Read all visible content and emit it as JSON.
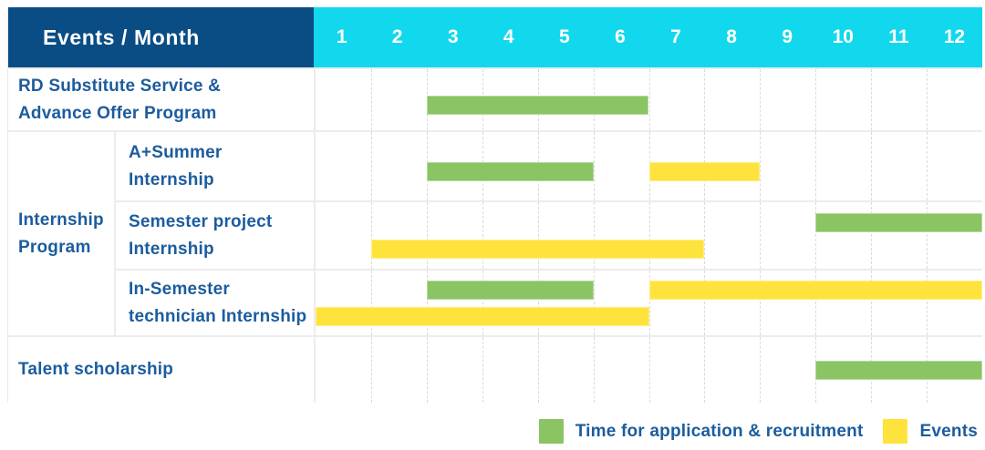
{
  "colors": {
    "navy": "#0a4d84",
    "cyan": "#12d8ee",
    "application_green": "#8bc463",
    "event_yellow": "#ffe33d",
    "label_blue": "#1c5c9e"
  },
  "chart_data": {
    "type": "bar",
    "variant": "gantt",
    "corner_title": "Events / Month",
    "xlabel": "Month",
    "x_range": [
      1,
      12
    ],
    "months": [
      "1",
      "2",
      "3",
      "4",
      "5",
      "6",
      "7",
      "8",
      "9",
      "10",
      "11",
      "12"
    ],
    "grid": "vertical-dashed",
    "legend_position": "bottom-right",
    "group_label": "Internship Program",
    "group_label_lines": [
      "Internship",
      "Program"
    ],
    "rows": [
      {
        "label": "RD Substitute Service & Advance Offer Program",
        "label_lines": [
          "RD Substitute Service &",
          "Advance Offer Program"
        ],
        "group": null,
        "bars": [
          {
            "kind": "application",
            "line": 0,
            "start_month": 3,
            "end_month": 6
          }
        ]
      },
      {
        "label": "A+Summer Internship",
        "label_lines": [
          "A+Summer",
          "Internship"
        ],
        "group": "Internship Program",
        "bars": [
          {
            "kind": "application",
            "line": 0,
            "start_month": 3,
            "end_month": 5
          },
          {
            "kind": "event",
            "line": 0,
            "start_month": 7,
            "end_month": 8
          }
        ]
      },
      {
        "label": "Semester project Internship",
        "label_lines": [
          "Semester project",
          "Internship"
        ],
        "group": "Internship Program",
        "bars": [
          {
            "kind": "application",
            "line": 0,
            "start_month": 10,
            "end_month": 12
          },
          {
            "kind": "event",
            "line": 1,
            "start_month": 2,
            "end_month": 7
          }
        ]
      },
      {
        "label": "In-Semester technician Internship",
        "label_lines": [
          "In-Semester",
          "technician Internship"
        ],
        "group": "Internship Program",
        "bars": [
          {
            "kind": "application",
            "line": 0,
            "start_month": 3,
            "end_month": 5
          },
          {
            "kind": "event",
            "line": 0,
            "start_month": 7,
            "end_month": 12
          },
          {
            "kind": "event",
            "line": 1,
            "start_month": 1,
            "end_month": 6
          }
        ]
      },
      {
        "label": "Talent scholarship",
        "label_lines": [
          "Talent scholarship"
        ],
        "group": null,
        "bars": [
          {
            "kind": "application",
            "line": 0,
            "start_month": 10,
            "end_month": 12
          }
        ]
      }
    ],
    "legend": {
      "items": [
        {
          "kind": "application",
          "label": "Time for application & recruitment",
          "color": "#8bc463"
        },
        {
          "kind": "event",
          "label": "Events",
          "color": "#ffe33d"
        }
      ]
    }
  }
}
